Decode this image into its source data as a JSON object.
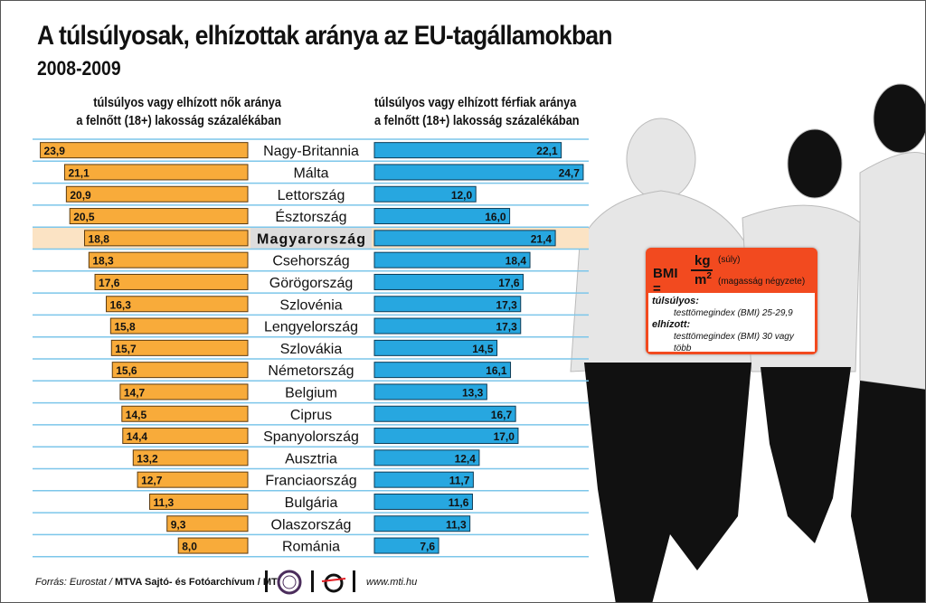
{
  "title": "A túlsúlyosak, elhízottak aránya az EU-tagállamokban",
  "subtitle": "2008-2009",
  "colors": {
    "women": "#f8ab3a",
    "men": "#27a7e0",
    "highlight_row": "#fbe3c4",
    "bmi_box": "#f24a1f",
    "row_line": "#7cc6ea"
  },
  "chart_data": {
    "type": "bar",
    "orientation": "horizontal-butterfly",
    "categories": [
      "Nagy-Britannia",
      "Málta",
      "Lettország",
      "Észtország",
      "Magyarország",
      "Csehország",
      "Görögország",
      "Szlovénia",
      "Lengyelország",
      "Szlovákia",
      "Németország",
      "Belgium",
      "Ciprus",
      "Spanyolország",
      "Ausztria",
      "Franciaország",
      "Bulgária",
      "Olaszország",
      "Románia"
    ],
    "highlight": "Magyarország",
    "series": [
      {
        "name": "túlsúlyos vagy elhízott nők aránya a felnőtt (18+) lakosság százalékában",
        "side": "left",
        "values": [
          "23,9",
          "21,1",
          "20,9",
          "20,5",
          "18,8",
          "18,3",
          "17,6",
          "16,3",
          "15,8",
          "15,7",
          "15,6",
          "14,7",
          "14,5",
          "14,4",
          "13,2",
          "12,7",
          "11,3",
          "9,3",
          "8,0"
        ]
      },
      {
        "name": "túlsúlyos vagy elhízott férfiak aránya a felnőtt (18+) lakosság százalékában",
        "side": "right",
        "values": [
          "22,1",
          "24,7",
          "12,0",
          "16,0",
          "21,4",
          "18,4",
          "17,6",
          "17,3",
          "17,3",
          "14,5",
          "16,1",
          "13,3",
          "16,7",
          "17,0",
          "12,4",
          "11,7",
          "11,6",
          "11,3",
          "7,6"
        ]
      }
    ]
  },
  "headers": {
    "left_line1": "túlsúlyos vagy elhízott nők aránya",
    "left_line2": "a felnőtt (18+) lakosság százalékában",
    "right_line1": "túlsúlyos vagy elhízott férfiak aránya",
    "right_line2": "a felnőtt (18+) lakosság százalékában"
  },
  "bmi": {
    "label": "BMI =",
    "numerator": "kg",
    "denominator": "m",
    "exponent": "2",
    "numerator_note": "(súly)",
    "denominator_note": "(magasság négyzete)",
    "overweight_label": "túlsúlyos:",
    "overweight_text": "testtömegindex (BMI) 25-29,9",
    "obese_label": "elhízott:",
    "obese_text": "testtömegindex (BMI) 30 vagy több"
  },
  "footer": {
    "source_prefix": "Forrás: Eurostat / ",
    "source_bold": "MTVA Sajtó- és Fotóarchívum / MTI",
    "logo1": "MTVA",
    "website": "www.mti.hu"
  }
}
